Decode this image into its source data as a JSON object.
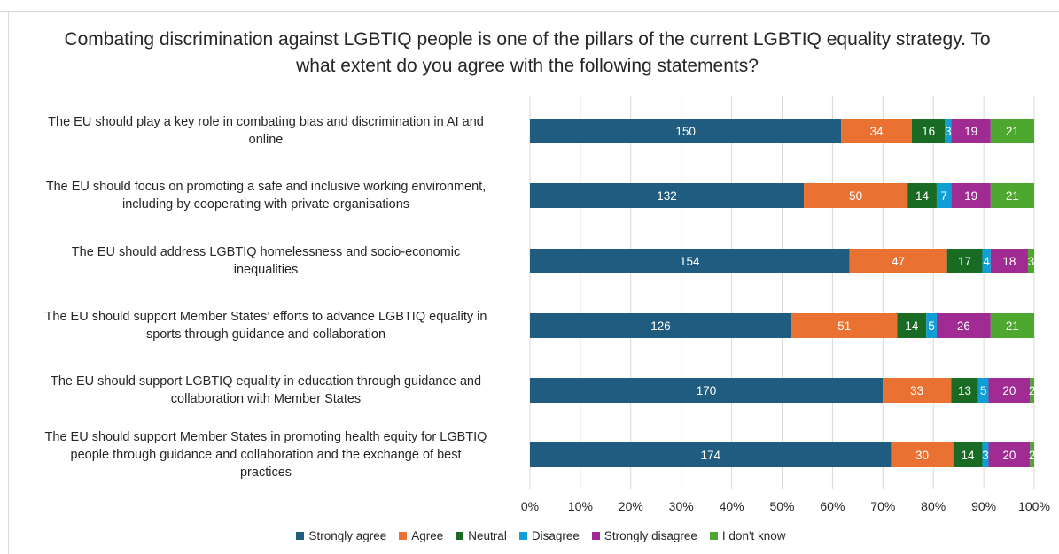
{
  "chart_data": {
    "type": "bar",
    "orientation": "horizontal",
    "stacked": "percent",
    "title": "Combating discrimination against LGBTIQ people is one of the pillars of the current LGBTIQ equality strategy. To what extent do you agree with the following statements?",
    "categories": [
      "The EU should play a key role in combating bias and discrimination in AI and online",
      "The EU should focus on promoting a safe and inclusive working environment, including by cooperating with private organisations",
      "The EU should address LGBTIQ homelessness and socio-economic inequalities",
      "The EU should support Member States’ efforts to advance LGBTIQ equality in sports through guidance and collaboration",
      "The EU should support LGBTIQ equality in education through guidance and collaboration with Member States",
      "The EU should support Member States in promoting health equity for LGBTIQ people through guidance and collaboration and the exchange of best practices"
    ],
    "category_lines": [
      [
        "The EU should play a key role in combating bias and discrimination in AI and",
        "online"
      ],
      [
        "The EU should focus on promoting a safe and inclusive working environment,",
        "including by cooperating with private organisations"
      ],
      [
        "The EU should address LGBTIQ homelessness and socio-economic",
        "inequalities"
      ],
      [
        "The EU should support Member States’ efforts to advance LGBTIQ equality in",
        "sports through guidance and collaboration"
      ],
      [
        "The EU should support LGBTIQ equality in education through guidance and",
        "collaboration with Member States"
      ],
      [
        "The EU should support Member States in promoting health equity for LGBTIQ",
        "people through guidance and collaboration and the exchange of best",
        "practices"
      ]
    ],
    "series": [
      {
        "name": "Strongly agree",
        "color": "#1f5c7f",
        "values": [
          150,
          132,
          154,
          126,
          170,
          174
        ]
      },
      {
        "name": "Agree",
        "color": "#e97132",
        "values": [
          34,
          50,
          47,
          51,
          33,
          30
        ]
      },
      {
        "name": "Neutral",
        "color": "#196b24",
        "values": [
          16,
          14,
          17,
          14,
          13,
          14
        ]
      },
      {
        "name": "Disagree",
        "color": "#0f9ed5",
        "values": [
          3,
          7,
          4,
          5,
          5,
          3
        ]
      },
      {
        "name": "Strongly disagree",
        "color": "#a02b93",
        "values": [
          19,
          19,
          18,
          26,
          20,
          20
        ]
      },
      {
        "name": "I don't know",
        "color": "#4ea72e",
        "values": [
          21,
          21,
          3,
          21,
          2,
          2
        ]
      }
    ],
    "xaxis": {
      "ticks": [
        "0%",
        "10%",
        "20%",
        "30%",
        "40%",
        "50%",
        "60%",
        "70%",
        "80%",
        "90%",
        "100%"
      ],
      "range": [
        0,
        1
      ]
    },
    "grid": true,
    "legend_position": "bottom"
  }
}
